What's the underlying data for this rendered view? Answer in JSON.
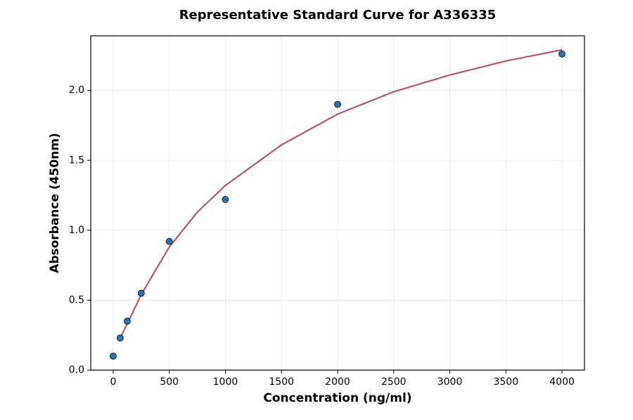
{
  "chart_data": {
    "type": "scatter",
    "title": "Representative Standard Curve for A336335",
    "x_label": "Concentration (ng/ml)",
    "y_label": "Absorbance (450nm)",
    "xlim": [
      -200,
      4200
    ],
    "ylim": [
      0,
      2.39
    ],
    "xticks": [
      0,
      500,
      1000,
      1500,
      2000,
      2500,
      3000,
      3500,
      4000
    ],
    "yticks": [
      {
        "value": 0,
        "label": "0.0"
      },
      0.5,
      {
        "value": 1,
        "label": "1.0"
      },
      1.5,
      {
        "value": 2,
        "label": "2.0"
      }
    ],
    "grid": true,
    "series": [
      {
        "kind": "points",
        "color": "#1f77b4",
        "x": [
          0,
          62.5,
          125,
          250,
          500,
          1000,
          2000,
          4000
        ],
        "values": [
          0.1,
          0.23,
          0.35,
          0.55,
          0.92,
          1.22,
          1.9,
          2.26
        ]
      },
      {
        "kind": "line",
        "color": "#b5566a",
        "x": [
          62.5,
          125,
          250,
          500,
          750,
          1000,
          1500,
          2000,
          2500,
          3000,
          3500,
          4000
        ],
        "values": [
          0.23,
          0.33,
          0.54,
          0.88,
          1.13,
          1.32,
          1.61,
          1.83,
          1.99,
          2.11,
          2.21,
          2.29
        ]
      }
    ]
  }
}
